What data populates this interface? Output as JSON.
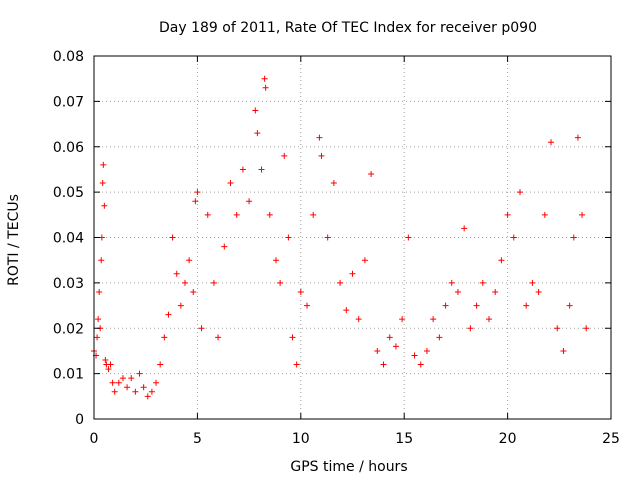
{
  "chart_data": {
    "type": "scatter",
    "title": "Day 189 of 2011, Rate Of TEC Index for receiver p090",
    "xlabel": "GPS time / hours",
    "ylabel": "ROTI / TECUs",
    "xlim": [
      0,
      25
    ],
    "ylim": [
      0,
      0.08
    ],
    "x_ticks": [
      "0",
      "5",
      "10",
      "15",
      "20",
      "25"
    ],
    "y_ticks": [
      "0",
      "0.01",
      "0.02",
      "0.03",
      "0.04",
      "0.05",
      "0.06",
      "0.07",
      "0.08"
    ],
    "grid": true,
    "legend": "none",
    "marker": "+",
    "colors": {
      "points": "#ff0000",
      "grid": "#a0a0a0",
      "axes": "#000000"
    },
    "series": [
      {
        "points": [
          [
            0.0,
            0.015
          ],
          [
            0.1,
            0.014
          ],
          [
            0.15,
            0.018
          ],
          [
            0.2,
            0.022
          ],
          [
            0.25,
            0.028
          ],
          [
            0.3,
            0.02
          ],
          [
            0.35,
            0.035
          ],
          [
            0.38,
            0.04
          ],
          [
            0.42,
            0.052
          ],
          [
            0.45,
            0.056
          ],
          [
            0.5,
            0.047
          ],
          [
            0.55,
            0.013
          ],
          [
            0.6,
            0.012
          ],
          [
            0.7,
            0.011
          ],
          [
            0.8,
            0.012
          ],
          [
            0.9,
            0.008
          ],
          [
            1.0,
            0.006
          ],
          [
            1.2,
            0.008
          ],
          [
            1.4,
            0.009
          ],
          [
            1.6,
            0.007
          ],
          [
            1.8,
            0.009
          ],
          [
            2.0,
            0.006
          ],
          [
            2.2,
            0.01
          ],
          [
            2.4,
            0.007
          ],
          [
            2.6,
            0.005
          ],
          [
            2.8,
            0.006
          ],
          [
            3.0,
            0.008
          ],
          [
            3.2,
            0.012
          ],
          [
            3.4,
            0.018
          ],
          [
            3.6,
            0.023
          ],
          [
            3.8,
            0.04
          ],
          [
            4.0,
            0.032
          ],
          [
            4.2,
            0.025
          ],
          [
            4.4,
            0.03
          ],
          [
            4.6,
            0.035
          ],
          [
            4.8,
            0.028
          ],
          [
            4.9,
            0.048
          ],
          [
            5.0,
            0.05
          ],
          [
            5.2,
            0.02
          ],
          [
            5.5,
            0.045
          ],
          [
            5.8,
            0.03
          ],
          [
            6.0,
            0.018
          ],
          [
            6.3,
            0.038
          ],
          [
            6.6,
            0.052
          ],
          [
            6.9,
            0.045
          ],
          [
            7.2,
            0.055
          ],
          [
            7.5,
            0.048
          ],
          [
            7.8,
            0.068
          ],
          [
            7.9,
            0.063
          ],
          [
            8.1,
            0.055
          ],
          [
            8.25,
            0.075
          ],
          [
            8.3,
            0.073
          ],
          [
            8.5,
            0.045
          ],
          [
            8.8,
            0.035
          ],
          [
            9.0,
            0.03
          ],
          [
            9.2,
            0.058
          ],
          [
            9.4,
            0.04
          ],
          [
            9.6,
            0.018
          ],
          [
            9.8,
            0.012
          ],
          [
            10.0,
            0.028
          ],
          [
            10.3,
            0.025
          ],
          [
            10.6,
            0.045
          ],
          [
            10.9,
            0.062
          ],
          [
            11.0,
            0.058
          ],
          [
            11.3,
            0.04
          ],
          [
            11.6,
            0.052
          ],
          [
            11.9,
            0.03
          ],
          [
            12.2,
            0.024
          ],
          [
            12.5,
            0.032
          ],
          [
            12.8,
            0.022
          ],
          [
            13.1,
            0.035
          ],
          [
            13.4,
            0.054
          ],
          [
            13.7,
            0.015
          ],
          [
            14.0,
            0.012
          ],
          [
            14.3,
            0.018
          ],
          [
            14.6,
            0.016
          ],
          [
            14.9,
            0.022
          ],
          [
            15.2,
            0.04
          ],
          [
            15.5,
            0.014
          ],
          [
            15.8,
            0.012
          ],
          [
            16.1,
            0.015
          ],
          [
            16.4,
            0.022
          ],
          [
            16.7,
            0.018
          ],
          [
            17.0,
            0.025
          ],
          [
            17.3,
            0.03
          ],
          [
            17.6,
            0.028
          ],
          [
            17.9,
            0.042
          ],
          [
            18.2,
            0.02
          ],
          [
            18.5,
            0.025
          ],
          [
            18.8,
            0.03
          ],
          [
            19.1,
            0.022
          ],
          [
            19.4,
            0.028
          ],
          [
            19.7,
            0.035
          ],
          [
            20.0,
            0.045
          ],
          [
            20.3,
            0.04
          ],
          [
            20.6,
            0.05
          ],
          [
            20.9,
            0.025
          ],
          [
            21.2,
            0.03
          ],
          [
            21.5,
            0.028
          ],
          [
            21.8,
            0.045
          ],
          [
            22.1,
            0.061
          ],
          [
            22.4,
            0.02
          ],
          [
            22.7,
            0.015
          ],
          [
            23.0,
            0.025
          ],
          [
            23.2,
            0.04
          ],
          [
            23.4,
            0.062
          ],
          [
            23.6,
            0.045
          ],
          [
            23.8,
            0.02
          ]
        ]
      }
    ]
  }
}
